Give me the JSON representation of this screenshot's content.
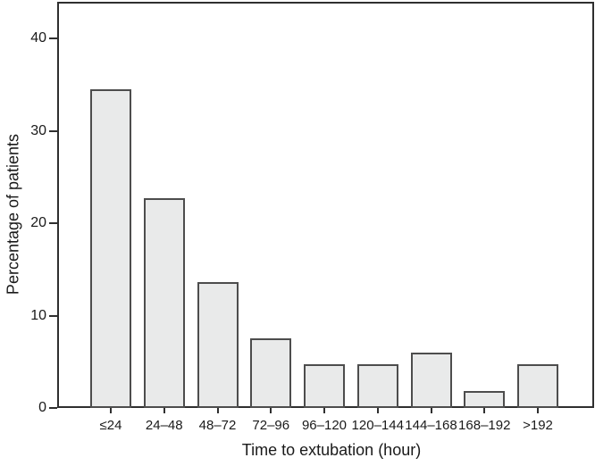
{
  "chart_data": {
    "type": "bar",
    "title": "",
    "categories": [
      "≤24",
      "24–48",
      "48–72",
      "72–96",
      "96–120",
      "120–144",
      "144–168",
      "168–192",
      ">192"
    ],
    "values": [
      34.5,
      22.7,
      13.6,
      7.5,
      4.7,
      4.7,
      6.0,
      1.8,
      4.7
    ],
    "xlabel": "Time to extubation (hour)",
    "ylabel": "Percentage of patients",
    "ylim": [
      0,
      44
    ],
    "yticks": [
      0,
      10,
      20,
      30,
      40
    ],
    "grid": false,
    "legend": null,
    "colors": {
      "bar_fill": "#e9eaea",
      "bar_border": "#4d4d4d",
      "axis": "#2f2f2f",
      "text": "#1a1a1a",
      "background": "#ffffff"
    }
  }
}
